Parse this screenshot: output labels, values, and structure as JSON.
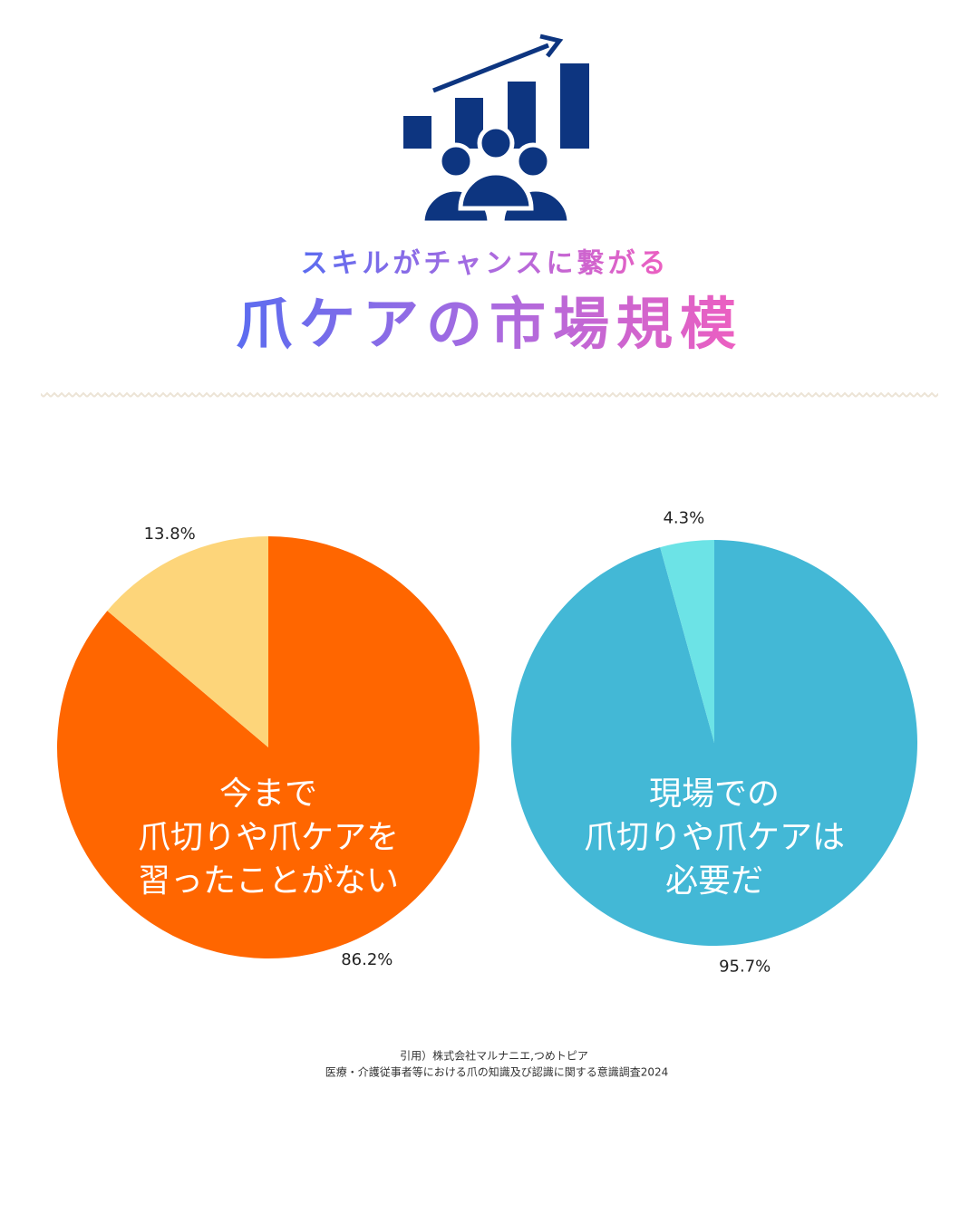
{
  "subtitle": "スキルがチャンスに繋がる",
  "title": "爪ケアの市場規模",
  "chart_data": [
    {
      "type": "pie",
      "center_text": [
        "今まで",
        "爪切りや爪ケアを",
        "習ったことがない"
      ],
      "values": [
        86.2,
        13.8
      ],
      "value_labels": [
        "86.2%",
        "13.8%"
      ],
      "colors": [
        "#ff6600",
        "#fdd57a"
      ]
    },
    {
      "type": "pie",
      "center_text": [
        "現場での",
        "爪切りや爪ケアは",
        "必要だ"
      ],
      "values": [
        95.7,
        4.3
      ],
      "value_labels": [
        "95.7%",
        "4.3%"
      ],
      "colors": [
        "#43b8d6",
        "#6ce3e6"
      ]
    }
  ],
  "source": [
    "引用）株式会社マルナニエ,つめトピア",
    "医療・介護従事者等における爪の知識及び認識に関する意識調査2024"
  ]
}
